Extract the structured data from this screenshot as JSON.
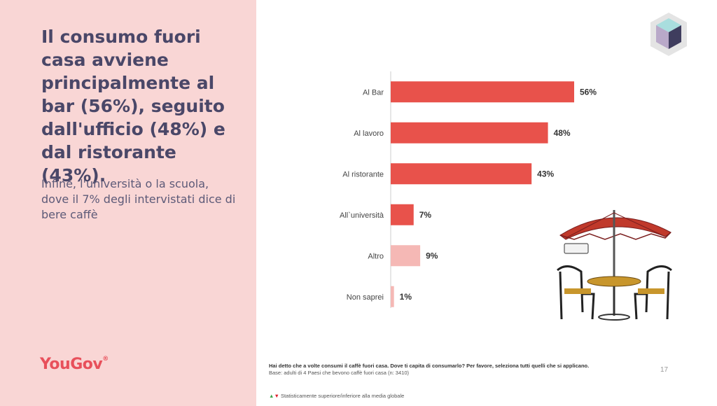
{
  "headline": "Il consumo fuori casa avviene principalmente al bar (56%), seguito dall'ufficio (48%) e dal ristorante (43%).",
  "subtext": "Infine, l'università o la scuola, dove il 7% degli intervistati dice di bere caffè",
  "logo": "YouGov",
  "logo_mark": "®",
  "chart_data": {
    "type": "bar",
    "orientation": "horizontal",
    "categories": [
      "Al Bar",
      "Al lavoro",
      "Al ristorante",
      "All`università",
      "Altro",
      "Non saprei"
    ],
    "values": [
      56,
      48,
      43,
      7,
      9,
      1
    ],
    "labels": [
      "56%",
      "48%",
      "43%",
      "7%",
      "9%",
      "1%"
    ],
    "colors": [
      "#e8524b",
      "#e8524b",
      "#e8524b",
      "#e8524b",
      "#f5b8b5",
      "#f5b8b5"
    ],
    "unit": "%",
    "xlim": [
      0,
      60
    ],
    "grid": false
  },
  "footnote": {
    "question": "Hai detto che a volte consumi il caffè fuori casa. Dove ti capita di consumarlo? Per favore, seleziona tutti quelli che si applicano.",
    "base": "Base: adulti di 4 Paesi che bevono caffè fuori casa (n: 3410)",
    "legend_up": "▲",
    "legend_down": "▼",
    "legend_text": " Statisticamente superiore/inferiore alla media globale"
  },
  "page_number": "17",
  "icons": {
    "logo_cube": "cube-logo-icon",
    "illustration": "cafe-table-umbrella-icon"
  }
}
